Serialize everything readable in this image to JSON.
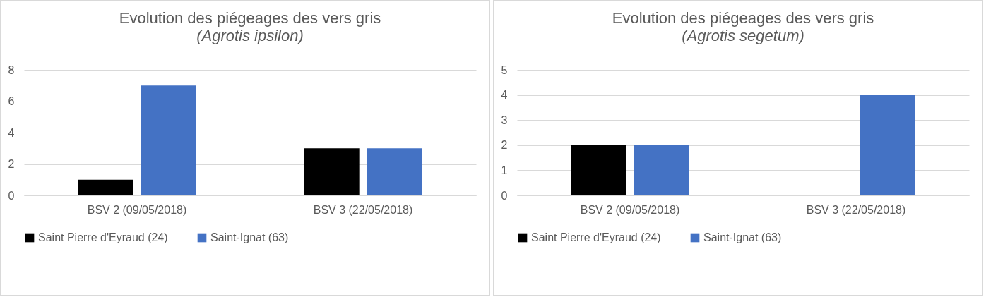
{
  "chart_data": [
    {
      "type": "bar",
      "title": "Evolution des piégeages des vers gris",
      "subtitle": "(Agrotis ipsilon)",
      "categories": [
        "BSV 2 (09/05/2018)",
        "BSV 3 (22/05/2018)"
      ],
      "series": [
        {
          "name": "Saint Pierre d'Eyraud (24)",
          "color": "#000000",
          "values": [
            1,
            3
          ]
        },
        {
          "name": "Saint-Ignat (63)",
          "color": "#4472c4",
          "values": [
            7,
            3
          ]
        }
      ],
      "ylim": [
        0,
        8
      ],
      "yticks": [
        0,
        2,
        4,
        6,
        8
      ],
      "grid": "y",
      "legend": "bottom"
    },
    {
      "type": "bar",
      "title": "Evolution des piégeages des vers gris",
      "subtitle": "(Agrotis segetum)",
      "categories": [
        "BSV 2 (09/05/2018)",
        "BSV 3 (22/05/2018)"
      ],
      "series": [
        {
          "name": "Saint Pierre d'Eyraud (24)",
          "color": "#000000",
          "values": [
            2,
            0
          ]
        },
        {
          "name": "Saint-Ignat (63)",
          "color": "#4472c4",
          "values": [
            2,
            4
          ]
        }
      ],
      "ylim": [
        0,
        5
      ],
      "yticks": [
        0,
        1,
        2,
        3,
        4,
        5
      ],
      "grid": "y",
      "legend": "bottom"
    }
  ]
}
